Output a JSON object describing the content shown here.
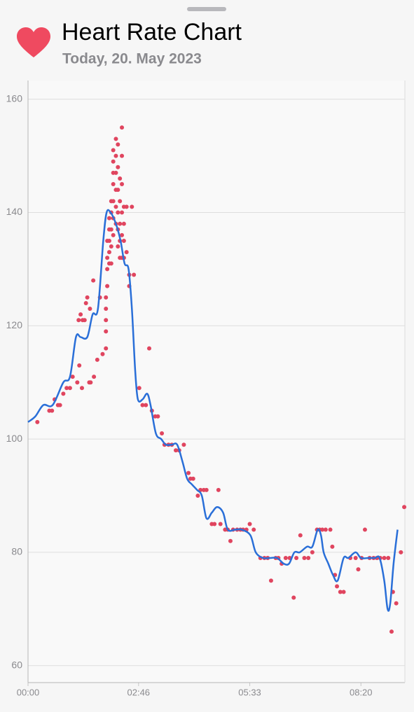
{
  "chart_data": {
    "type": "line",
    "title": "Heart Rate Chart",
    "subtitle": "Today, 20. May 2023",
    "xlim": [
      0,
      566
    ],
    "ylim": [
      57,
      163.3
    ],
    "xticks": [
      {
        "value": 0,
        "label": "00:00"
      },
      {
        "value": 166,
        "label": "02:46"
      },
      {
        "value": 333,
        "label": "05:33"
      },
      {
        "value": 500,
        "label": "08:20"
      }
    ],
    "yticks": [
      60,
      80,
      100,
      120,
      140,
      160
    ],
    "grid": true,
    "series": [
      {
        "type": "scatter",
        "color": "#e0455f",
        "x": [
          14,
          32,
          36,
          40,
          45,
          48,
          53,
          58,
          63,
          67,
          74,
          77,
          76,
          79,
          81,
          82,
          85,
          87,
          89,
          92,
          94,
          93,
          98,
          99,
          104,
          108,
          112,
          117,
          117,
          117,
          117,
          117,
          119,
          119,
          119,
          119,
          122,
          122,
          122,
          122,
          122,
          125,
          125,
          125,
          125,
          125,
          128,
          128,
          128,
          128,
          128,
          128,
          128,
          132,
          132,
          132,
          132,
          132,
          132,
          135,
          135,
          135,
          135,
          135,
          135,
          138,
          138,
          138,
          138,
          138,
          141,
          141,
          141,
          141,
          141,
          141,
          144,
          144,
          144,
          144,
          148,
          148,
          152,
          152,
          156,
          159,
          167,
          172,
          177,
          182,
          186,
          191,
          195,
          201,
          205,
          211,
          216,
          222,
          227,
          234,
          241,
          244,
          248,
          255,
          259,
          264,
          268,
          276,
          280,
          286,
          289,
          296,
          300,
          304,
          308,
          314,
          319,
          323,
          328,
          333,
          339,
          349,
          355,
          360,
          365,
          372,
          376,
          381,
          387,
          393,
          399,
          403,
          409,
          415,
          421,
          427,
          434,
          438,
          442,
          447,
          454,
          457,
          461,
          464,
          469,
          474,
          484,
          492,
          496,
          501,
          506,
          513,
          519,
          524,
          529,
          535,
          541,
          548,
          553,
          546,
          560,
          565
        ],
        "values": [
          103,
          105,
          105,
          107,
          106,
          106,
          108,
          109,
          109,
          111,
          110,
          113,
          121,
          122,
          109,
          121,
          121,
          124,
          125,
          110,
          110,
          123,
          128,
          111,
          114,
          125,
          115,
          116,
          119,
          121,
          123,
          125,
          127,
          130,
          132,
          135,
          131,
          133,
          135,
          137,
          139,
          131,
          134,
          137,
          140,
          142,
          136,
          139,
          142,
          145,
          147,
          149,
          151,
          138,
          141,
          144,
          147,
          150,
          153,
          134,
          137,
          140,
          144,
          148,
          152,
          132,
          135,
          138,
          142,
          146,
          132,
          136,
          140,
          145,
          150,
          155,
          132,
          135,
          138,
          141,
          133,
          141,
          127,
          129,
          141,
          129,
          109,
          106,
          106,
          116,
          105,
          104,
          104,
          101,
          99,
          99,
          99,
          98,
          98,
          99,
          94,
          93,
          93,
          90,
          91,
          91,
          91,
          85,
          85,
          91,
          85,
          84,
          84,
          82,
          84,
          84,
          84,
          84,
          84,
          85,
          84,
          79,
          79,
          79,
          75,
          79,
          79,
          78,
          79,
          79,
          72,
          79,
          83,
          79,
          79,
          80,
          84,
          84,
          84,
          84,
          84,
          81,
          76,
          74,
          73,
          73,
          79,
          79,
          77,
          79,
          84,
          79,
          79,
          79,
          79,
          79,
          79,
          73,
          71,
          66,
          80,
          88
        ]
      },
      {
        "type": "line",
        "color": "#2a6fd8",
        "x": [
          0,
          11,
          23,
          37,
          53,
          63,
          72,
          79,
          89,
          97,
          105,
          113,
          118,
          124,
          132,
          139,
          145,
          151,
          156,
          161,
          165,
          172,
          179,
          184,
          192,
          200,
          207,
          216,
          224,
          232,
          239,
          246,
          254,
          261,
          268,
          276,
          284,
          293,
          300,
          311,
          321,
          334,
          342,
          353,
          363,
          374,
          384,
          392,
          400,
          408,
          419,
          427,
          435,
          440,
          444,
          451,
          458,
          465,
          474,
          481,
          492,
          500,
          511,
          521,
          528,
          535,
          540,
          544,
          549,
          555
        ],
        "values": [
          103,
          104,
          106,
          106,
          110,
          111,
          118,
          118,
          118,
          122,
          123,
          135,
          140,
          140,
          138,
          135,
          131,
          130,
          123,
          112,
          107,
          107,
          108,
          106,
          101,
          100,
          99,
          99,
          99,
          96,
          93,
          92,
          91,
          90,
          86,
          87,
          88,
          87,
          84,
          84,
          84,
          83,
          80,
          79,
          79,
          79,
          78,
          78,
          80,
          80,
          81,
          81,
          84,
          83,
          80,
          78,
          76,
          75,
          79,
          79,
          80,
          79,
          79,
          79,
          79,
          75,
          70,
          71,
          78,
          84
        ]
      }
    ]
  }
}
